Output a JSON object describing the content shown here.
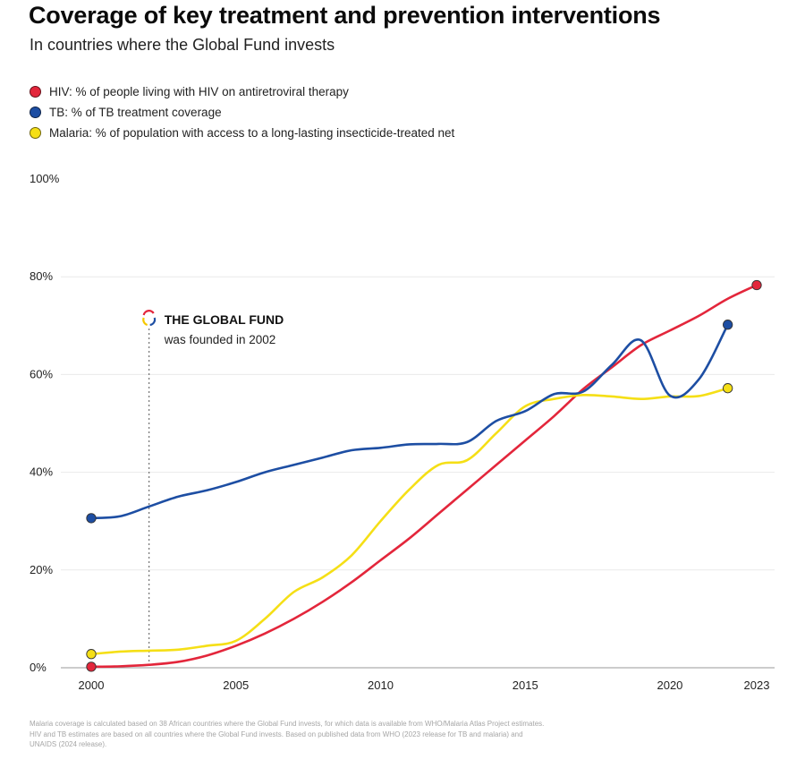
{
  "title": "Coverage of key treatment and prevention interventions",
  "subtitle": "In countries where the Global Fund invests",
  "chart_data": {
    "type": "line",
    "ylim": [
      0,
      100
    ],
    "xlim": [
      2000,
      2023
    ],
    "y_ticks": [
      "0%",
      "20%",
      "40%",
      "60%",
      "80%",
      "100%"
    ],
    "y_tick_values": [
      0,
      20,
      40,
      60,
      80,
      100
    ],
    "x_ticks": [
      "2000",
      "2005",
      "2010",
      "2015",
      "2020",
      "2023"
    ],
    "x_tick_values": [
      2000,
      2005,
      2010,
      2015,
      2020,
      2023
    ],
    "grid": true,
    "legend_placement": "top-left",
    "series": [
      {
        "name": "HIV: % of people living with HIV on antiretroviral therapy",
        "color": "#e3263b",
        "x": [
          2000,
          2001,
          2002,
          2003,
          2004,
          2005,
          2006,
          2007,
          2008,
          2009,
          2010,
          2011,
          2012,
          2013,
          2014,
          2015,
          2016,
          2017,
          2018,
          2019,
          2020,
          2021,
          2022,
          2023
        ],
        "y": [
          0.2,
          0.3,
          0.6,
          1.2,
          2.5,
          4.5,
          7,
          10,
          13.5,
          17.5,
          22,
          26.5,
          31.5,
          36.5,
          41.5,
          46.5,
          51.5,
          57,
          61.5,
          66,
          69,
          72,
          75.5,
          78.3
        ]
      },
      {
        "name": "TB: % of TB treatment coverage",
        "color": "#1d4ea3",
        "x": [
          2000,
          2001,
          2002,
          2003,
          2004,
          2005,
          2006,
          2007,
          2008,
          2009,
          2010,
          2011,
          2012,
          2013,
          2014,
          2015,
          2016,
          2017,
          2018,
          2019,
          2020,
          2021,
          2022
        ],
        "y": [
          30.6,
          31,
          33,
          35,
          36.3,
          38,
          40,
          41.5,
          43,
          44.5,
          45,
          45.7,
          45.8,
          46.2,
          50.5,
          52.5,
          56,
          56.5,
          62,
          67,
          55.7,
          59,
          70.2
        ]
      },
      {
        "name": "Malaria: % of population with access to a long-lasting insecticide-treated net",
        "color": "#f5df16",
        "x": [
          2000,
          2001,
          2002,
          2003,
          2004,
          2005,
          2006,
          2007,
          2008,
          2009,
          2010,
          2011,
          2012,
          2013,
          2014,
          2015,
          2016,
          2017,
          2018,
          2019,
          2020,
          2021,
          2022
        ],
        "y": [
          2.8,
          3.3,
          3.5,
          3.7,
          4.5,
          5.5,
          10,
          15.5,
          18.5,
          23,
          30,
          36.5,
          41.5,
          42.5,
          48,
          53.5,
          55,
          55.8,
          55.5,
          55,
          55.5,
          55.6,
          57.2
        ]
      }
    ],
    "annotation": {
      "x": 2002,
      "title": "THE GLOBAL FUND",
      "text": "was founded in 2002"
    }
  },
  "footnote": {
    "line1": "Malaria coverage is calculated based on 38 African countries where the Global Fund invests, for which data is available from WHO/Malaria Atlas Project estimates.",
    "line2": "HIV and TB estimates are based on all countries where the Global Fund invests. Based on published data from WHO (2023 release for TB and malaria) and",
    "line3": "UNAIDS (2024 release)."
  }
}
